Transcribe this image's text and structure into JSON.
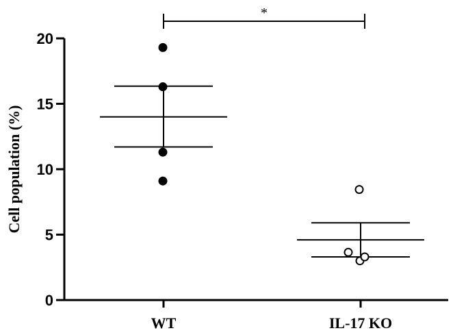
{
  "chart_data": {
    "type": "scatter",
    "title": "",
    "xlabel": "",
    "ylabel": "Cell population (%)",
    "ylim": [
      0,
      20
    ],
    "yticks": [
      0,
      5,
      10,
      15,
      20
    ],
    "categories": [
      "WT",
      "IL-17 KO"
    ],
    "series": [
      {
        "category": "WT",
        "values": [
          19.3,
          16.3,
          11.3,
          9.1
        ],
        "mean": 14.0,
        "sem_low": 11.7,
        "sem_high": 16.35,
        "marker": "filled",
        "color": "#000000"
      },
      {
        "category": "IL-17 KO",
        "values": [
          8.45,
          3.65,
          3.0,
          3.3
        ],
        "mean": 4.6,
        "sem_low": 3.3,
        "sem_high": 5.9,
        "marker": "open",
        "color": "#000000"
      }
    ],
    "significance": {
      "between": [
        "WT",
        "IL-17 KO"
      ],
      "label": "*"
    },
    "grid": false,
    "legend": "none"
  }
}
